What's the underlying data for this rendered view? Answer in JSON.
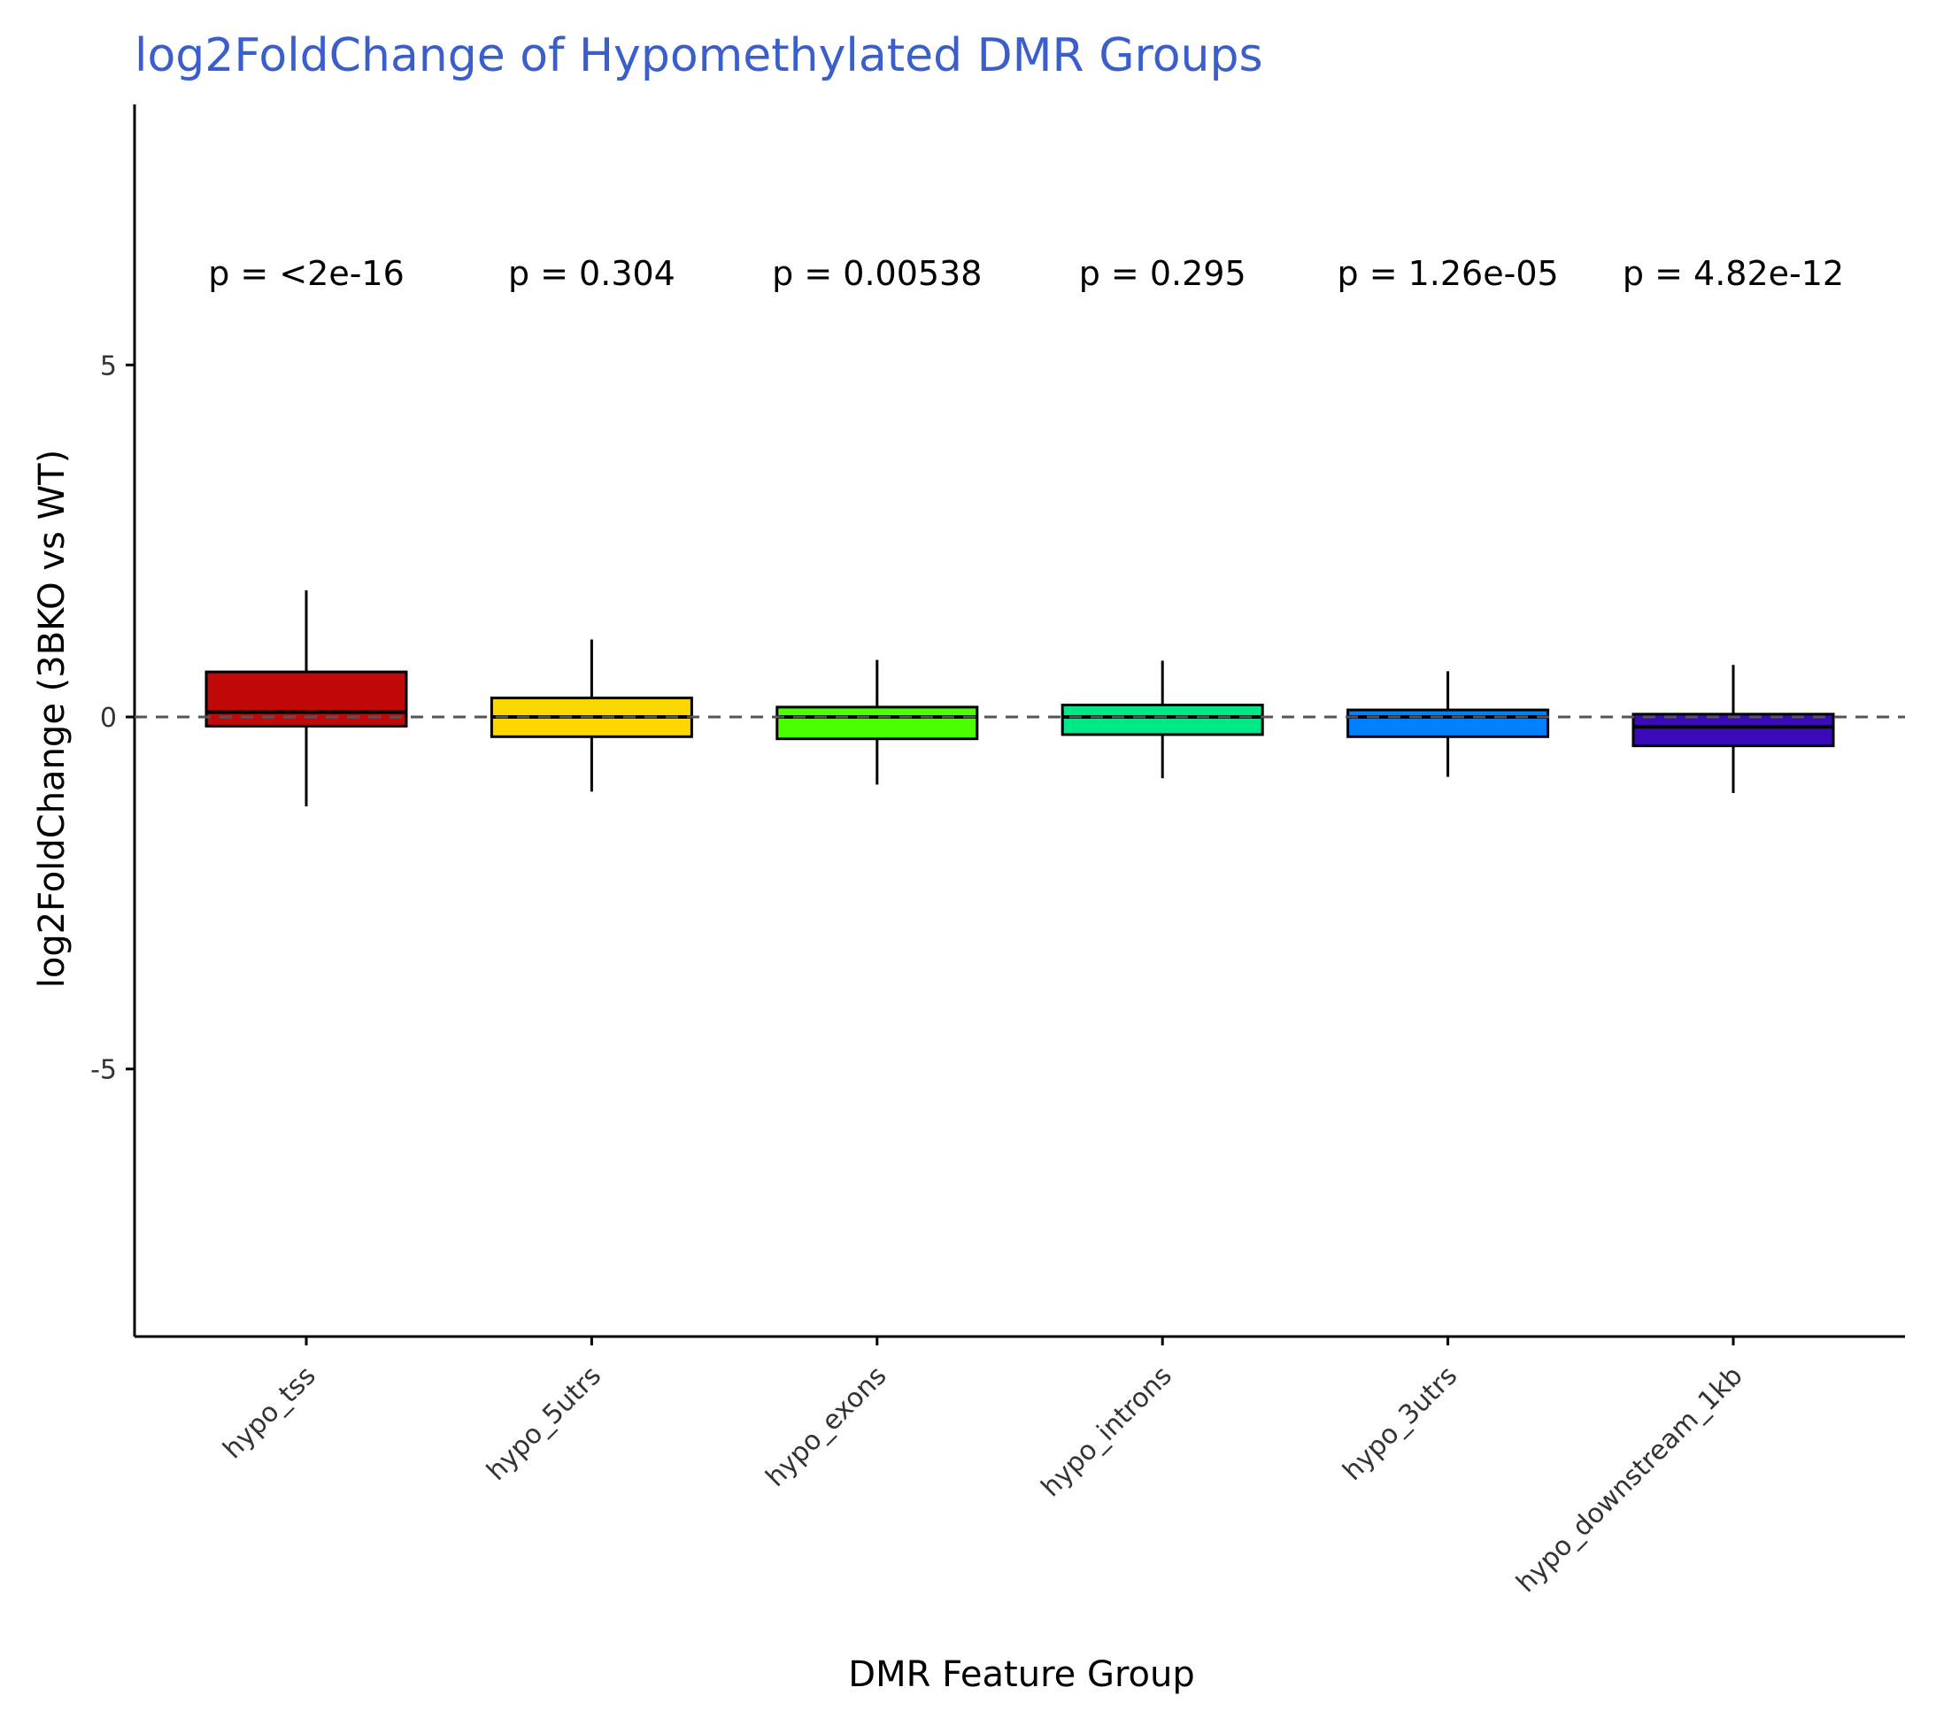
{
  "colors": {
    "title": "#3A5FCD",
    "axis": "#000000",
    "tick_text": "#333333",
    "reference_line": "#555555"
  },
  "chart_data": {
    "type": "boxplot",
    "title": "log2FoldChange of Hypomethylated DMR Groups",
    "xlabel": "DMR Feature Group",
    "ylabel": "log2FoldChange (3BKO vs WT)",
    "ylim": [
      -8.8,
      8.7
    ],
    "y_ticks": [
      -5,
      0,
      5
    ],
    "y_tick_labels": [
      "-5",
      "0",
      "5"
    ],
    "grid": false,
    "reference_line": {
      "y": 0,
      "style": "dashed"
    },
    "categories": [
      "hypo_tss",
      "hypo_5utrs",
      "hypo_exons",
      "hypo_introns",
      "hypo_3utrs",
      "hypo_downstream_1kb"
    ],
    "boxes": [
      {
        "category": "hypo_tss",
        "whisker_low": -1.27,
        "q1": -0.13,
        "median": 0.07,
        "q3": 0.64,
        "whisker_high": 1.8,
        "color": "#C00A0A"
      },
      {
        "category": "hypo_5utrs",
        "whisker_low": -1.06,
        "q1": -0.28,
        "median": 0.0,
        "q3": 0.27,
        "whisker_high": 1.1,
        "color": "#FFD700"
      },
      {
        "category": "hypo_exons",
        "whisker_low": -0.96,
        "q1": -0.31,
        "median": 0.0,
        "q3": 0.14,
        "whisker_high": 0.81,
        "color": "#4CFF00"
      },
      {
        "category": "hypo_introns",
        "whisker_low": -0.87,
        "q1": -0.25,
        "median": 0.0,
        "q3": 0.17,
        "whisker_high": 0.8,
        "color": "#00E887"
      },
      {
        "category": "hypo_3utrs",
        "whisker_low": -0.85,
        "q1": -0.28,
        "median": 0.0,
        "q3": 0.1,
        "whisker_high": 0.65,
        "color": "#0080FF"
      },
      {
        "category": "hypo_downstream_1kb",
        "whisker_low": -1.08,
        "q1": -0.41,
        "median": -0.14,
        "q3": 0.04,
        "whisker_high": 0.74,
        "color": "#3A0AB8"
      }
    ],
    "annotations": [
      "p = <2e-16",
      "p = 0.304",
      "p = 0.00538",
      "p = 0.295",
      "p = 1.26e-05",
      "p = 4.82e-12"
    ],
    "annotation_y": 6.3
  }
}
